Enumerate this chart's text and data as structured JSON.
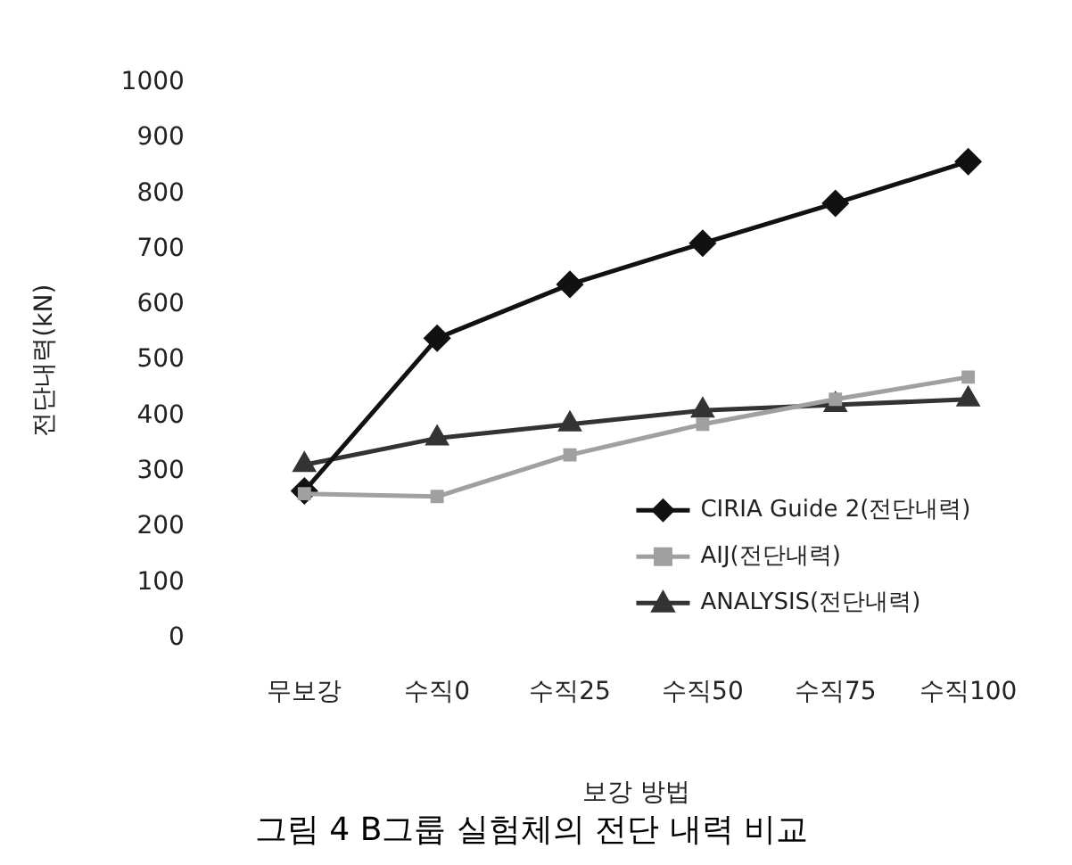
{
  "chart_data": {
    "type": "line",
    "title": "그림 4 B그룹 실험체의 전단 내력 비교",
    "xlabel": "보강 방법",
    "ylabel": "전단내력(kN)",
    "categories": [
      "무보강",
      "수직0",
      "수직25",
      "수직50",
      "수직75",
      "수직100"
    ],
    "series": [
      {
        "name": "CIRIA Guide 2(전단내력)",
        "color": "#111111",
        "marker": "diamond",
        "values": [
          265,
          540,
          637,
          711,
          783,
          858
        ]
      },
      {
        "name": "AIJ(전단내력)",
        "color": "#a0a0a0",
        "marker": "square",
        "values": [
          260,
          255,
          330,
          385,
          430,
          470
        ]
      },
      {
        "name": "ANALYSIS(전단내력)",
        "color": "#333333",
        "marker": "triangle",
        "values": [
          312,
          360,
          385,
          410,
          420,
          430
        ]
      }
    ],
    "ylim": [
      0,
      1000
    ],
    "yticks": [
      0,
      100,
      200,
      300,
      400,
      500,
      600,
      700,
      800,
      900,
      1000
    ],
    "grid": false,
    "legend": "right"
  }
}
